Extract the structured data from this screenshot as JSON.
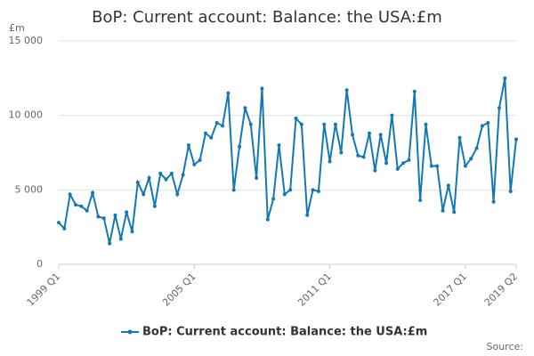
{
  "chart_data": {
    "type": "line",
    "title": "BoP: Current account: Balance: the USA:£m",
    "y_label": "£m",
    "source": "Source:",
    "categories": [
      "1999 Q1",
      null,
      null,
      null,
      null,
      null,
      null,
      null,
      null,
      null,
      null,
      null,
      null,
      null,
      null,
      null,
      null,
      null,
      null,
      null,
      null,
      null,
      null,
      null,
      "2005 Q1",
      null,
      null,
      null,
      null,
      null,
      null,
      null,
      null,
      null,
      null,
      null,
      null,
      null,
      null,
      null,
      null,
      null,
      null,
      null,
      null,
      null,
      null,
      null,
      "2011 Q1",
      null,
      null,
      null,
      null,
      null,
      null,
      null,
      null,
      null,
      null,
      null,
      null,
      null,
      null,
      null,
      null,
      null,
      null,
      null,
      null,
      null,
      null,
      null,
      "2017 Q1",
      null,
      null,
      null,
      null,
      null,
      null,
      null,
      null,
      "2019 Q2"
    ],
    "series": [
      {
        "name": "BoP: Current account: Balance: the USA:£m",
        "color": "#1479b3",
        "values": [
          2800,
          2400,
          4700,
          4000,
          3900,
          3600,
          4800,
          3200,
          3100,
          1400,
          3300,
          1700,
          3500,
          2200,
          5500,
          4700,
          5800,
          3900,
          6100,
          5700,
          6100,
          4700,
          6000,
          8000,
          6700,
          7000,
          8800,
          8500,
          9500,
          9300,
          11500,
          5000,
          7900,
          10500,
          9400,
          5800,
          11800,
          3000,
          4400,
          8000,
          4700,
          5000,
          9800,
          9400,
          3300,
          5000,
          4900,
          9400,
          6900,
          9400,
          7500,
          11700,
          8700,
          7300,
          7200,
          8800,
          6300,
          8700,
          6800,
          10000,
          6400,
          6800,
          7000,
          11600,
          4300,
          9400,
          6600,
          6600,
          3600,
          5300,
          3500,
          8500,
          6600,
          7100,
          7800,
          9300,
          9500,
          4200,
          10500,
          12500,
          4900,
          8400
        ]
      }
    ],
    "ylim": [
      0,
      15000
    ],
    "yticks": [
      0,
      {
        "value": 5000,
        "label": "5 000"
      },
      {
        "value": 10000,
        "label": "10 000"
      },
      {
        "value": 15000,
        "label": "15 000"
      }
    ],
    "grid": true,
    "legend": "bottom"
  }
}
